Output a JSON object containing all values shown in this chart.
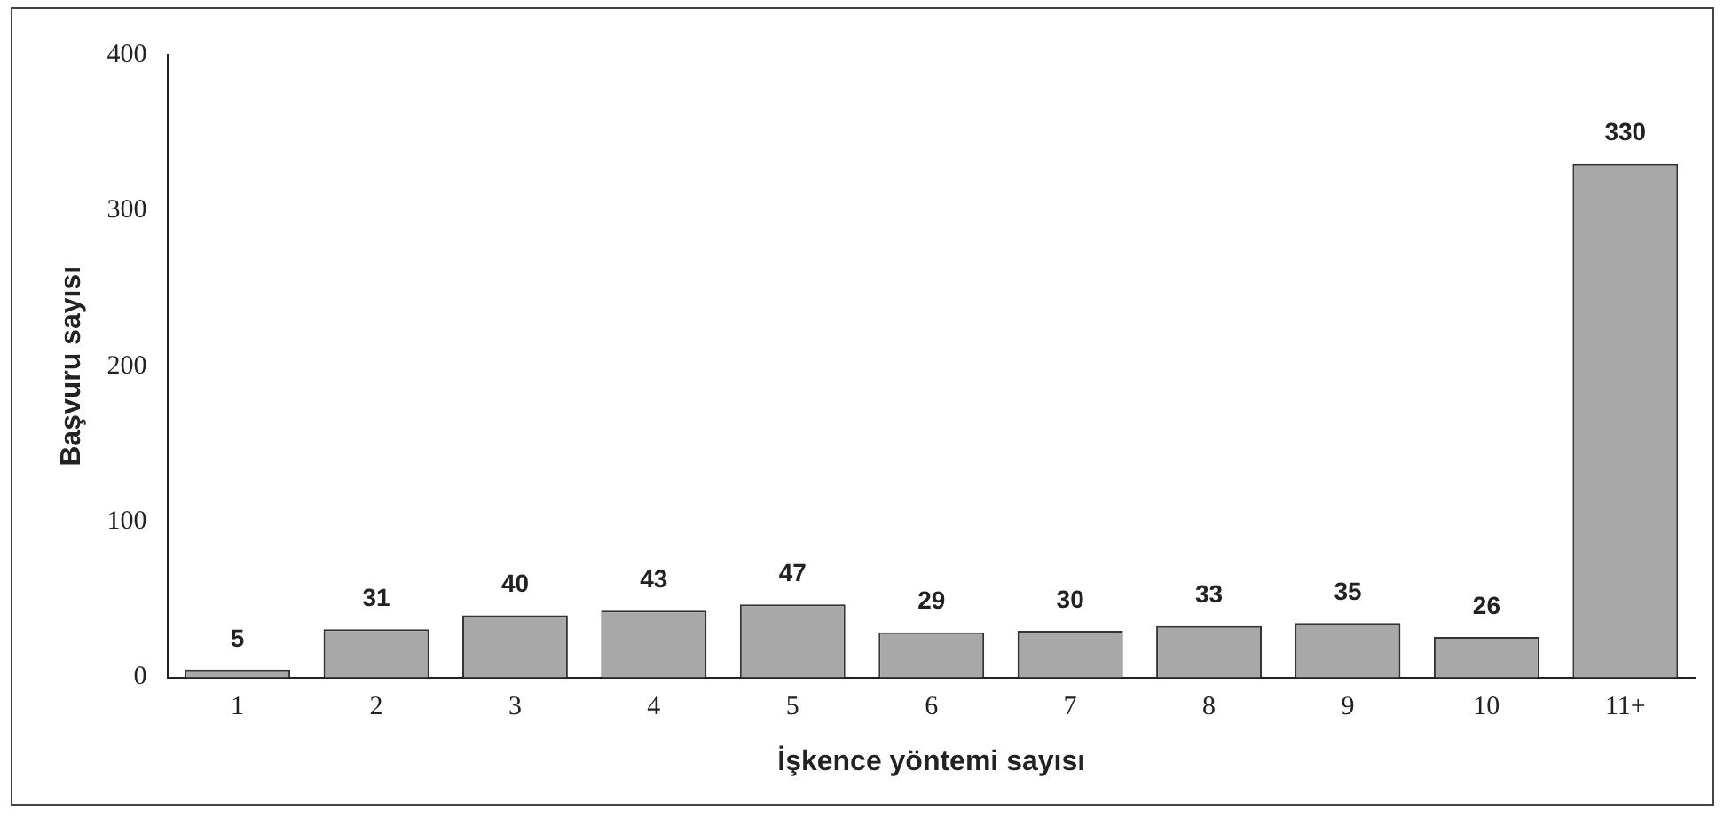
{
  "chart_data": {
    "type": "bar",
    "xlabel": "İşkence yöntemi sayısı",
    "ylabel": "Başvuru sayısı",
    "categories": [
      "1",
      "2",
      "3",
      "4",
      "5",
      "6",
      "7",
      "8",
      "9",
      "10",
      "11+"
    ],
    "values": [
      5,
      31,
      40,
      43,
      47,
      29,
      30,
      33,
      35,
      26,
      330
    ],
    "color": "#a8a8a8",
    "ylim": [
      0,
      400
    ],
    "yticks": [
      0,
      100,
      200,
      300,
      400
    ],
    "grid": false,
    "legend": false,
    "data_labels": true
  }
}
